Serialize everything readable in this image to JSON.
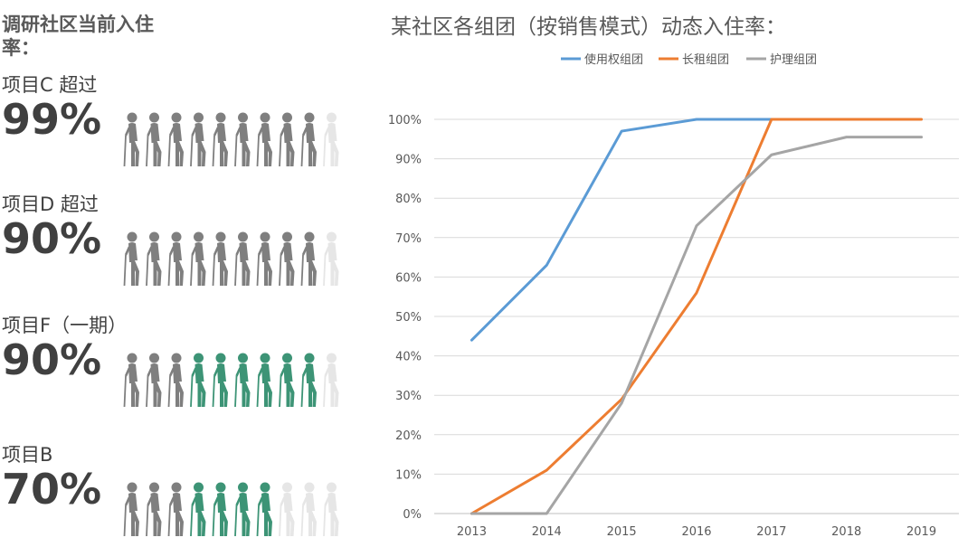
{
  "left_panel": {
    "title": "调研社区当前入住率：",
    "projects": [
      {
        "label": "项目C 超过",
        "value": "99%",
        "people": {
          "total": 10,
          "filled": 9,
          "highlighted": 0
        }
      },
      {
        "label": "项目D 超过",
        "value": "90%",
        "people": {
          "total": 10,
          "filled": 9,
          "highlighted": 0
        }
      },
      {
        "label": "项目F（一期）",
        "value": "90%",
        "people": {
          "total": 10,
          "filled": 9,
          "highlighted": 6
        }
      },
      {
        "label": "项目B",
        "value": "70%",
        "people": {
          "total": 10,
          "filled": 7,
          "highlighted": 4
        }
      }
    ],
    "colors": {
      "filled": "#7f7f7f",
      "highlighted": "#3d9476",
      "empty": "#e6e6e6"
    },
    "icon": "elderly-person-with-cane-icon"
  },
  "chart_data": {
    "type": "line",
    "title": "某社区各组团（按销售模式）动态入住率：",
    "x": [
      "2013",
      "2014",
      "2015",
      "2016",
      "2017",
      "2018",
      "2019"
    ],
    "y_ticks": [
      "0%",
      "10%",
      "20%",
      "30%",
      "40%",
      "50%",
      "60%",
      "70%",
      "80%",
      "90%",
      "100%"
    ],
    "ylim": [
      0,
      100
    ],
    "grid": true,
    "legend_position": "top-center",
    "series": [
      {
        "name": "使用权组团",
        "color": "#5b9bd5",
        "values": [
          44,
          63,
          97,
          100,
          100,
          null,
          null
        ]
      },
      {
        "name": "长租组团",
        "color": "#ed7d31",
        "values": [
          0,
          11,
          29,
          56,
          100,
          100,
          100
        ]
      },
      {
        "name": "护理组团",
        "color": "#a5a5a5",
        "values": [
          0,
          0,
          28,
          73,
          91,
          95.5,
          95.5
        ]
      }
    ]
  }
}
